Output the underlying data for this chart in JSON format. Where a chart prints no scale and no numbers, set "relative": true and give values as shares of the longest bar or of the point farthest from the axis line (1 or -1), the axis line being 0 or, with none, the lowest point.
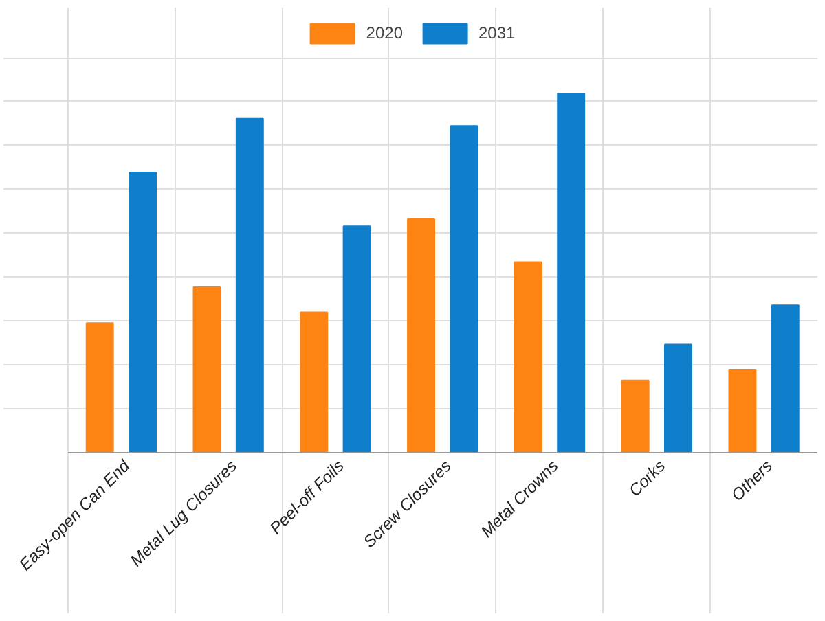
{
  "chart_data": {
    "type": "bar",
    "relative": true,
    "grid": true,
    "legend": "top",
    "categories": [
      "Easy-open Can End",
      "Metal Lug Closures",
      "Peel-off Foils",
      "Screw Closures",
      "Metal Crowns",
      "Corks",
      "Others"
    ],
    "series": [
      {
        "name": "2020",
        "color": "#fd8412",
        "values": [
          0.36,
          0.46,
          0.39,
          0.65,
          0.53,
          0.2,
          0.23
        ]
      },
      {
        "name": "2031",
        "color": "#0f7fcc",
        "values": [
          0.78,
          0.93,
          0.63,
          0.91,
          1.0,
          0.3,
          0.41
        ]
      }
    ]
  }
}
